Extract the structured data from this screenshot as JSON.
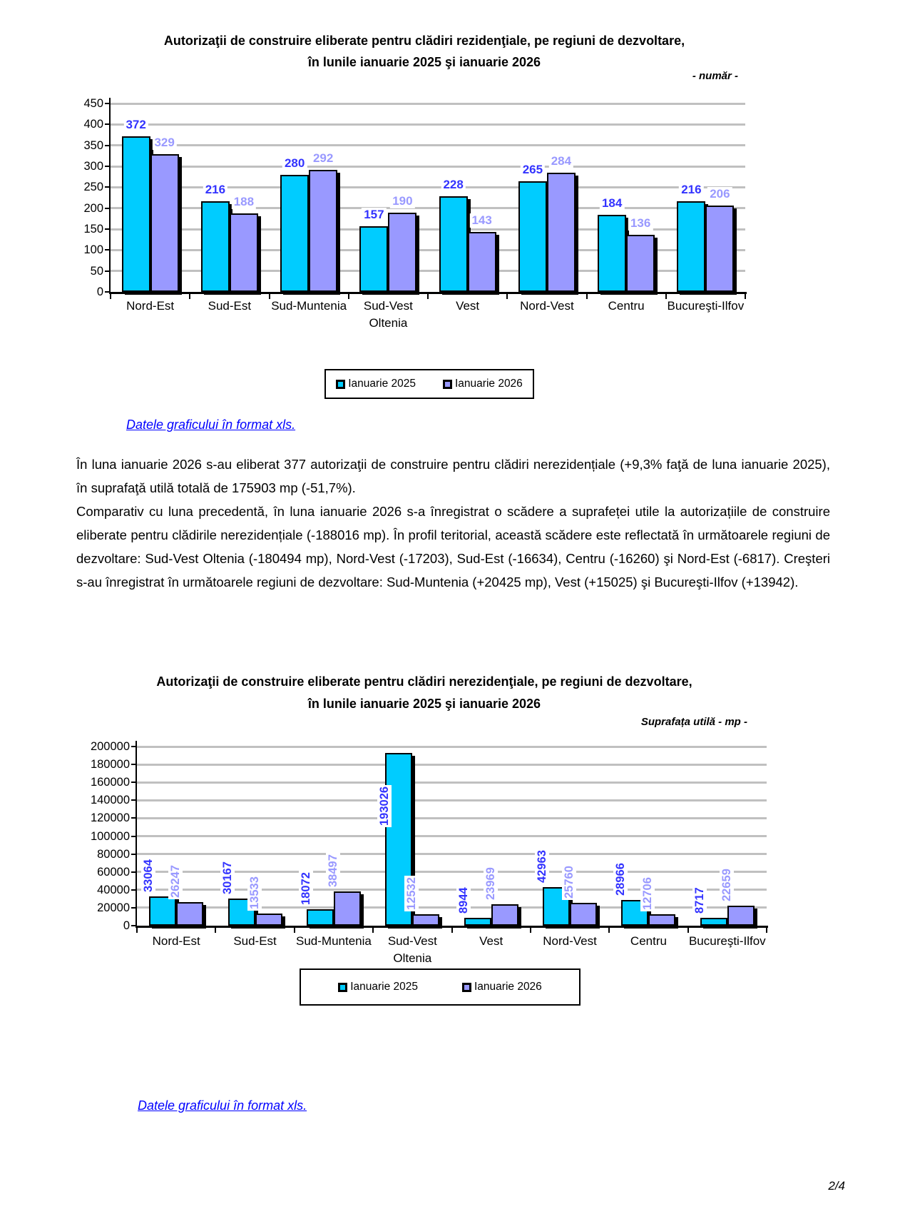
{
  "page": {
    "number": "2/4"
  },
  "paragraphs": [
    "În luna ianuarie 2026 s-au eliberat 377 autorizaţii de construire pentru clădiri nerezidențiale (+9,3% faţă de luna ianuarie 2025), în suprafaţă utilă totală de 175903 mp (-51,7%).",
    "Comparativ cu luna precedentă, în luna ianuarie 2026 s-a înregistrat o scădere a suprafeței utile la autorizațiile de construire eliberate pentru clădirile nerezidențiale (-188016 mp). În profil teritorial, această scădere este reflectată în următoarele regiuni de dezvoltare: Sud-Vest Oltenia (-180494 mp), Nord-Vest (-17203), Sud-Est (-16634), Centru (-16260) şi Nord-Est (-6817). Creşteri s-au înregistrat în următoarele regiuni de dezvoltare: Sud-Muntenia (+20425 mp), Vest (+15025) şi Bucureşti-Ilfov (+13942)."
  ],
  "chart_data": [
    {
      "id": "residential",
      "type": "bar",
      "title_line1": "Autorizaţii de construire eliberate pentru clădiri rezidenţiale, pe regiuni de dezvoltare,",
      "title_line2": "în lunile ianuarie 2025 şi ianuarie 2026",
      "unit_note": "- număr -",
      "xls_link": "Datele graficului în format xls.",
      "categories": [
        "Nord-Est",
        "Sud-Est",
        "Sud-Muntenia",
        "Sud-Vest\nOltenia",
        "Vest",
        "Nord-Vest",
        "Centru",
        "Bucureşti-Ilfov"
      ],
      "series": [
        {
          "name": "Ianuarie 2025",
          "color": "#00CCFF",
          "label_color": "#3333FF",
          "values": [
            372,
            216,
            280,
            157,
            228,
            265,
            184,
            216
          ]
        },
        {
          "name": "Ianuarie 2026",
          "color": "#9999FF",
          "label_color": "#9999FF",
          "values": [
            329,
            188,
            292,
            190,
            143,
            284,
            136,
            206
          ]
        }
      ],
      "ylim": [
        0,
        450
      ],
      "ytick": 50,
      "grid": true,
      "gridline_color": "#C0C0C0",
      "legend_position": "bottom",
      "value_label_rotation": 0
    },
    {
      "id": "nonresidential",
      "type": "bar",
      "title_line1": "Autorizaţii de construire eliberate pentru clădiri nerezidenţiale, pe regiuni de dezvoltare,",
      "title_line2": "în lunile ianuarie 2025 şi ianuarie 2026",
      "unit_note": "Suprafața utilă - mp -",
      "xls_link": "Datele graficului în format xls.",
      "categories": [
        "Nord-Est",
        "Sud-Est",
        "Sud-Muntenia",
        "Sud-Vest\nOltenia",
        "Vest",
        "Nord-Vest",
        "Centru",
        "Bucureşti-Ilfov"
      ],
      "series": [
        {
          "name": "Ianuarie 2025",
          "color": "#00CCFF",
          "label_color": "#3333FF",
          "values": [
            33064,
            30167,
            18072,
            193026,
            8944,
            42963,
            28966,
            8717
          ]
        },
        {
          "name": "Ianuarie 2026",
          "color": "#9999FF",
          "label_color": "#9999FF",
          "values": [
            26247,
            13533,
            38497,
            12532,
            23969,
            25760,
            12706,
            22659
          ]
        }
      ],
      "ylim": [
        0,
        200000
      ],
      "ytick": 20000,
      "grid": true,
      "gridline_color": "#C0C0C0",
      "legend_position": "bottom",
      "value_label_rotation": 90
    }
  ]
}
